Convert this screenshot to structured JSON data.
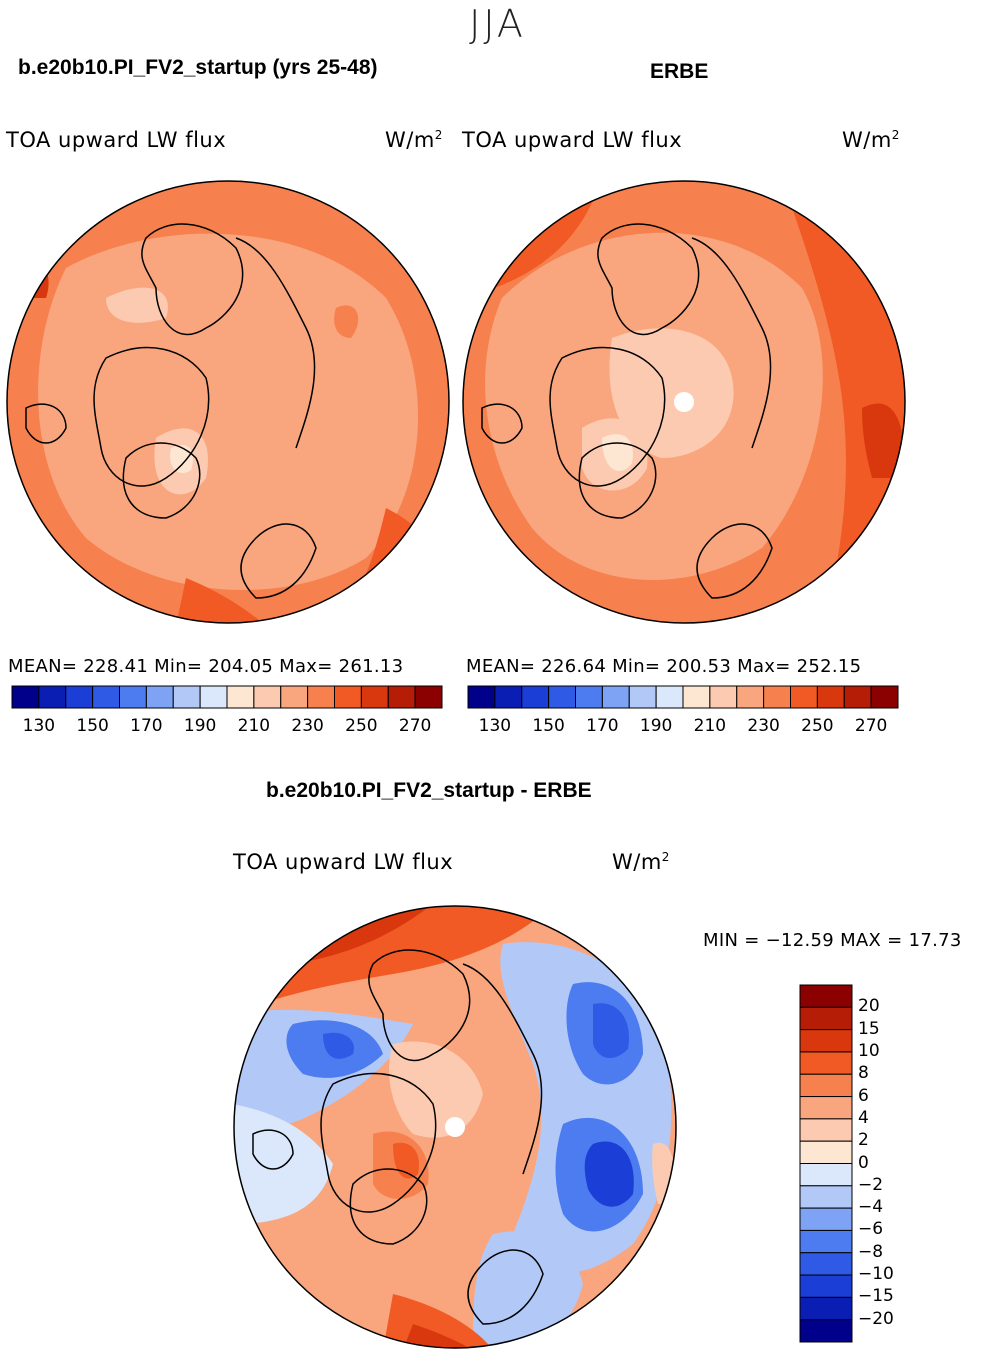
{
  "figure": {
    "season": "JJA",
    "panels": [
      {
        "id": "model",
        "title": "b.e20b10.PI_FV2_startup (yrs 25-48)",
        "variable": "TOA upward LW flux",
        "units_base": "W/m",
        "units_exp": "2",
        "stats": "MEAN= 228.41   Min= 204.05   Max= 261.13"
      },
      {
        "id": "obs",
        "title": "ERBE",
        "variable": "TOA upward LW flux",
        "units_base": "W/m",
        "units_exp": "2",
        "stats": "MEAN= 226.64   Min= 200.53   Max= 252.15"
      }
    ],
    "diff_panel": {
      "title": "b.e20b10.PI_FV2_startup - ERBE",
      "variable": "TOA upward LW flux",
      "units_base": "W/m",
      "units_exp": "2",
      "minmax": "MIN = −12.59 MAX =  17.73"
    },
    "abs_colorbar": {
      "colors": [
        "#00008b",
        "#0a1eb4",
        "#1a3ed6",
        "#2f5ae6",
        "#4d7cf0",
        "#7ea3f4",
        "#b2c9f8",
        "#dbe8fb",
        "#fde6d2",
        "#fccab0",
        "#f9a67e",
        "#f6804e",
        "#f15a24",
        "#d9380f",
        "#b51d06",
        "#8b0000"
      ],
      "tick_labels": [
        "130",
        "150",
        "170",
        "190",
        "210",
        "230",
        "250",
        "270"
      ]
    },
    "diff_colorbar": {
      "colors": [
        "#8b0000",
        "#b51d06",
        "#d9380f",
        "#f15a24",
        "#f6804e",
        "#f9a67e",
        "#fccab0",
        "#fde6d2",
        "#dbe8fb",
        "#b2c9f8",
        "#7ea3f4",
        "#4d7cf0",
        "#2f5ae6",
        "#1a3ed6",
        "#0a1eb4",
        "#00008b"
      ],
      "tick_labels": [
        "20",
        "15",
        "10",
        "8",
        "6",
        "4",
        "2",
        "0",
        "−2",
        "−4",
        "−6",
        "−8",
        "−10",
        "−15",
        "−20"
      ]
    }
  }
}
